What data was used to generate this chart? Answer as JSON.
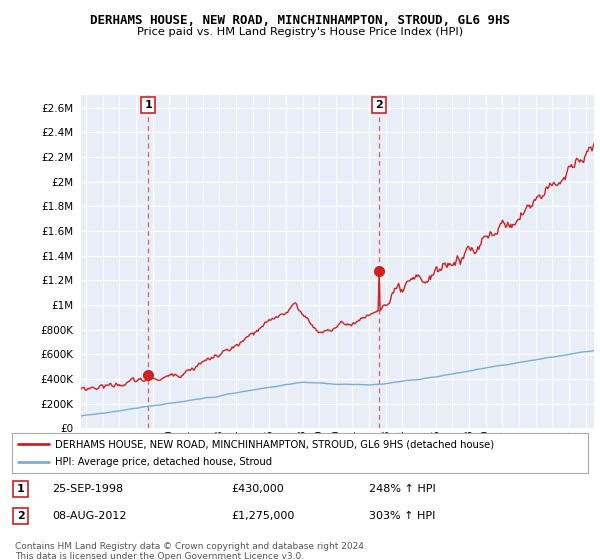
{
  "title": "DERHAMS HOUSE, NEW ROAD, MINCHINHAMPTON, STROUD, GL6 9HS",
  "subtitle": "Price paid vs. HM Land Registry's House Price Index (HPI)",
  "ylim": [
    0,
    2700000
  ],
  "yticks": [
    0,
    200000,
    400000,
    600000,
    800000,
    1000000,
    1200000,
    1400000,
    1600000,
    1800000,
    2000000,
    2200000,
    2400000,
    2600000
  ],
  "ytick_labels": [
    "£0",
    "£200K",
    "£400K",
    "£600K",
    "£800K",
    "£1M",
    "£1.2M",
    "£1.4M",
    "£1.6M",
    "£1.8M",
    "£2M",
    "£2.2M",
    "£2.4M",
    "£2.6M"
  ],
  "xlim_start": 1994.7,
  "xlim_end": 2025.5,
  "sale1_x": 1998.73,
  "sale1_y": 430000,
  "sale1_label": "1",
  "sale1_date": "25-SEP-1998",
  "sale1_price": "£430,000",
  "sale1_hpi": "248% ↑ HPI",
  "sale2_x": 2012.59,
  "sale2_y": 1275000,
  "sale2_label": "2",
  "sale2_date": "08-AUG-2012",
  "sale2_price": "£1,275,000",
  "sale2_hpi": "303% ↑ HPI",
  "hpi_color": "#7aaed6",
  "price_color": "#cc2222",
  "vline_color": "#dd4444",
  "legend_label_price": "DERHAMS HOUSE, NEW ROAD, MINCHINHAMPTON, STROUD, GL6 9HS (detached house)",
  "legend_label_hpi": "HPI: Average price, detached house, Stroud",
  "footnote": "Contains HM Land Registry data © Crown copyright and database right 2024.\nThis data is licensed under the Open Government Licence v3.0.",
  "background_color": "#ffffff",
  "plot_bg_color": "#e8eef8",
  "grid_color": "#ffffff"
}
